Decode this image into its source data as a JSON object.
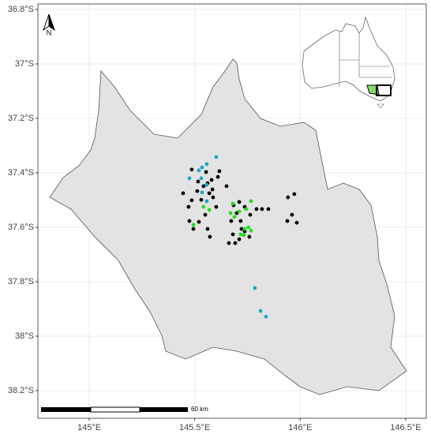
{
  "map": {
    "xticks": [
      {
        "value": 145,
        "label": "145°E"
      },
      {
        "value": 145.5,
        "label": "145.5°E"
      },
      {
        "value": 146,
        "label": "146°E"
      },
      {
        "value": 146.5,
        "label": "146.5°E"
      }
    ],
    "yticks": [
      {
        "value": -36.8,
        "label": "36.8°S"
      },
      {
        "value": -37,
        "label": "37°S"
      },
      {
        "value": -37.2,
        "label": "37.2°S"
      },
      {
        "value": -37.4,
        "label": "37.4°S"
      },
      {
        "value": -37.6,
        "label": "37.6°S"
      },
      {
        "value": -37.8,
        "label": "37.8°S"
      },
      {
        "value": -38,
        "label": "38°S"
      },
      {
        "value": -38.2,
        "label": "38.2°S"
      }
    ],
    "north_label": "N",
    "scale_label": "60 km",
    "points": [
      {
        "color": "#000000",
        "lon": [
          145.486,
          145.554,
          145.617,
          145.61,
          145.58,
          145.516,
          145.561,
          145.542,
          145.584,
          145.651,
          145.445,
          145.512,
          145.569,
          145.587,
          145.486,
          145.531,
          145.471,
          145.602,
          145.475,
          145.494,
          145.55,
          145.52,
          145.561,
          145.572,
          145.684,
          145.711,
          145.737,
          145.763,
          145.793,
          145.819,
          145.849,
          145.699,
          145.673,
          145.718,
          145.722,
          145.681,
          145.711,
          145.662,
          145.692,
          145.759,
          145.942,
          145.972,
          145.961,
          145.984,
          145.939,
          145.737
        ],
        "lat": [
          -37.388,
          -37.397,
          -37.394,
          -37.415,
          -37.426,
          -37.432,
          -37.438,
          -37.449,
          -37.461,
          -37.449,
          -37.475,
          -37.467,
          -37.475,
          -37.49,
          -37.501,
          -37.499,
          -37.525,
          -37.525,
          -37.577,
          -37.606,
          -37.554,
          -37.58,
          -37.606,
          -37.635,
          -37.519,
          -37.507,
          -37.525,
          -37.554,
          -37.533,
          -37.533,
          -37.533,
          -37.548,
          -37.577,
          -37.577,
          -37.606,
          -37.626,
          -37.644,
          -37.658,
          -37.658,
          -37.635,
          -37.49,
          -37.478,
          -37.554,
          -37.583,
          -37.577,
          -37.615
        ]
      },
      {
        "color": "#1aa7c9",
        "lon": [
          145.602,
          145.557,
          145.535,
          145.52,
          145.475,
          145.531,
          145.557,
          145.535,
          145.557,
          145.785,
          145.812,
          145.838
        ],
        "lat": [
          -37.342,
          -37.368,
          -37.38,
          -37.391,
          -37.42,
          -37.42,
          -37.444,
          -37.472,
          -37.504,
          -37.823,
          -37.907,
          -37.928
        ]
      },
      {
        "color": "#22dd22",
        "lon": [
          145.767,
          145.681,
          145.67,
          145.711,
          145.688,
          145.542,
          145.569,
          145.494,
          145.718,
          145.737,
          145.755,
          145.767,
          145.733,
          145.744
        ],
        "lat": [
          -37.504,
          -37.513,
          -37.548,
          -37.542,
          -37.562,
          -37.525,
          -37.536,
          -37.591,
          -37.626,
          -37.606,
          -37.6,
          -37.612,
          -37.629,
          -37.533
        ]
      }
    ]
  }
}
